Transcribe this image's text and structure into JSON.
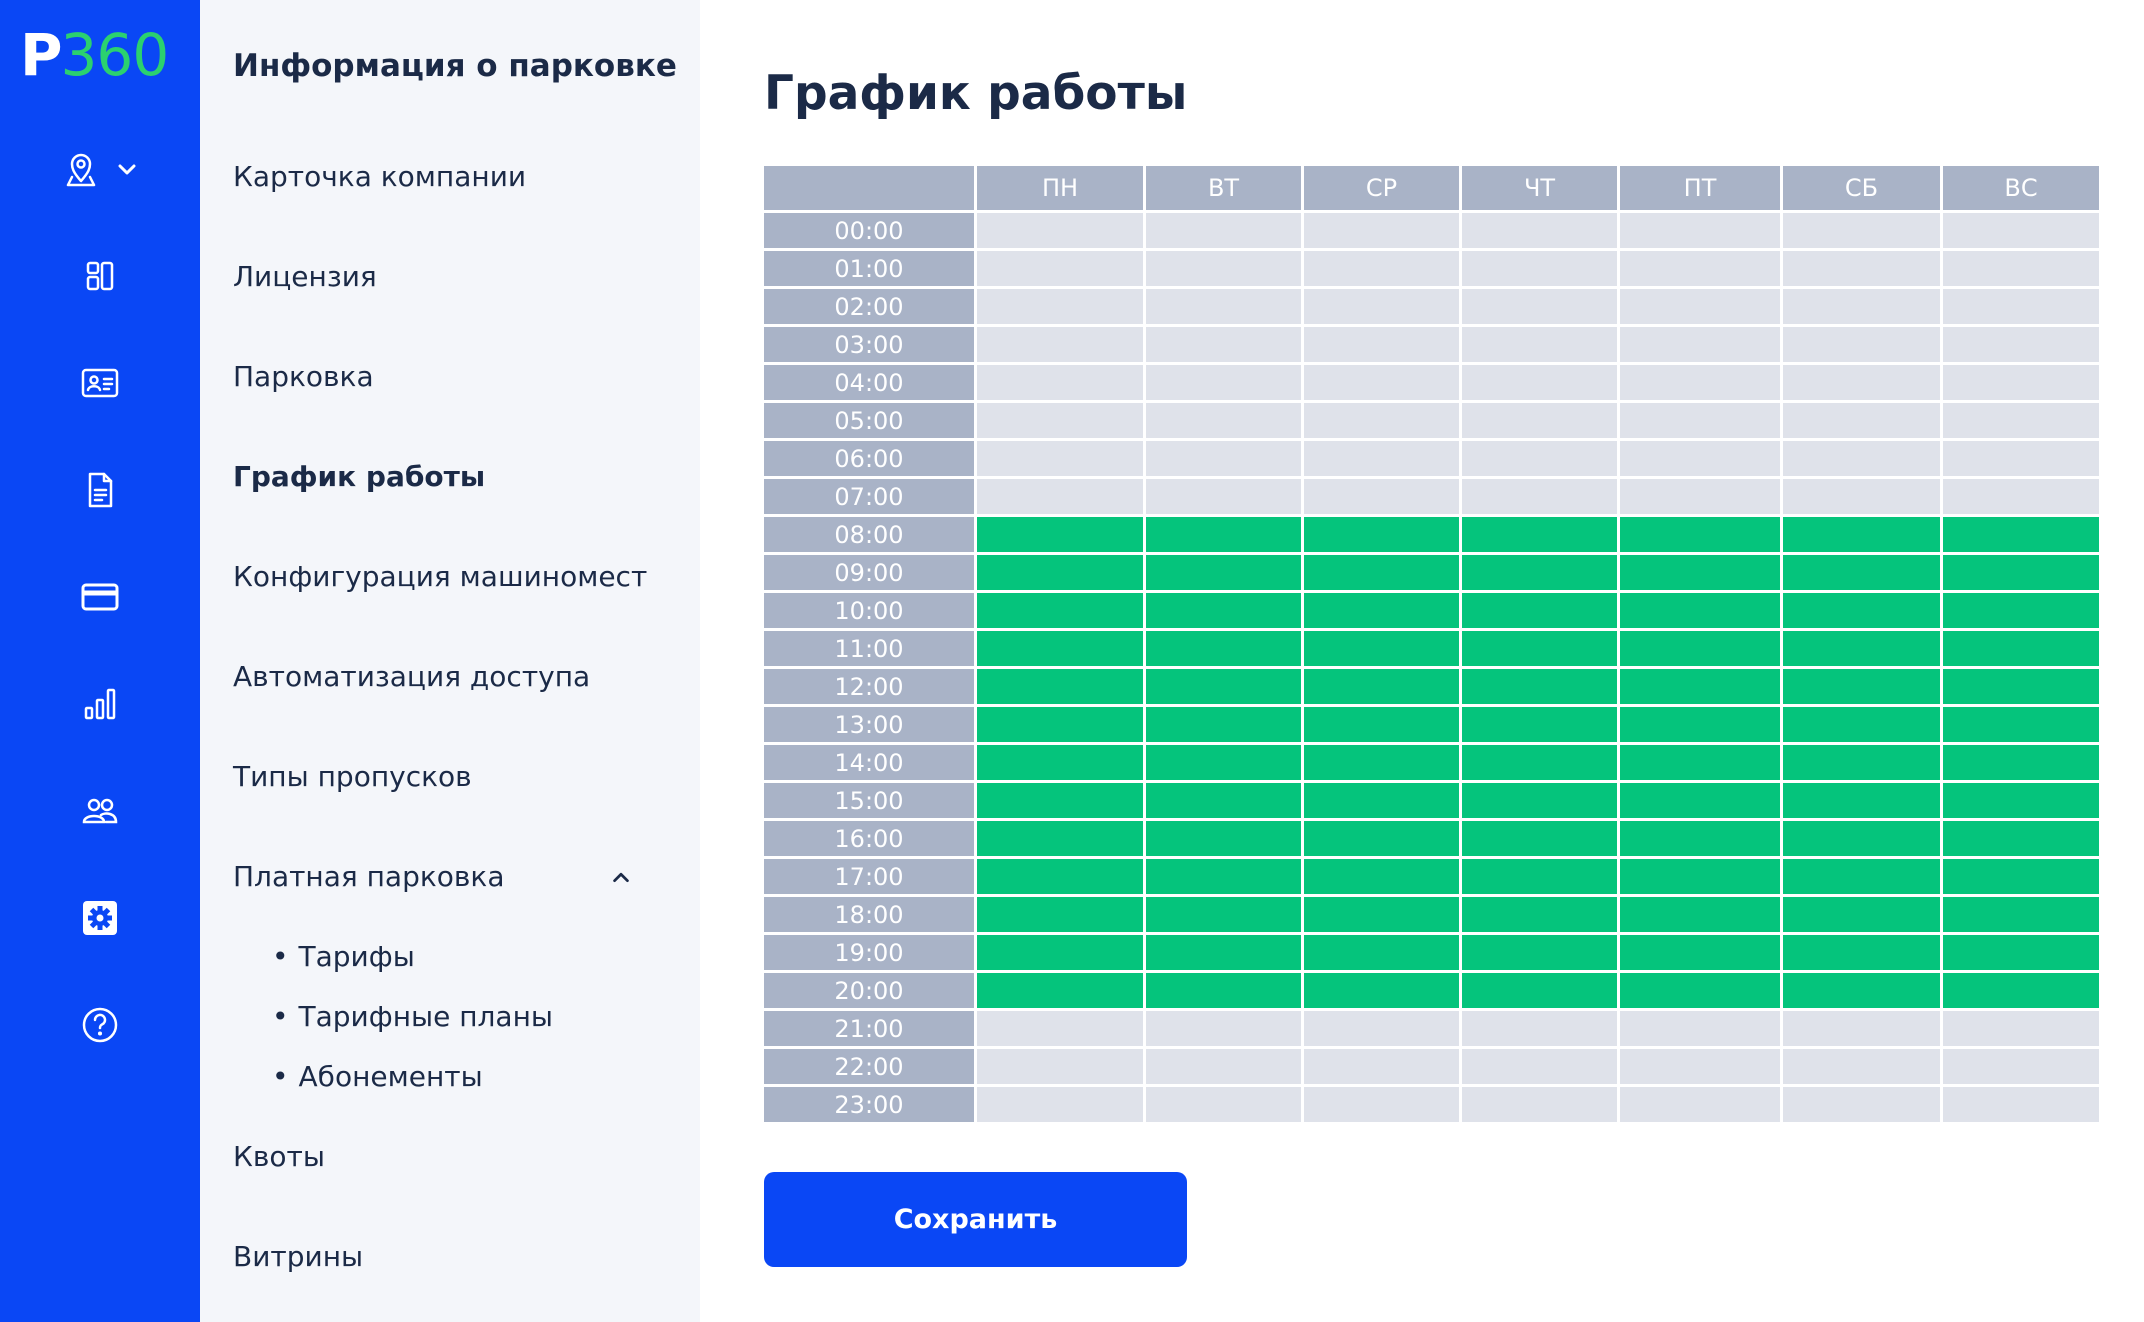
{
  "logo": {
    "letter": "P",
    "number": "360"
  },
  "rail": {
    "icons": [
      "location-pin-icon",
      "dashboard-icon",
      "id-card-icon",
      "document-icon",
      "credit-card-icon",
      "bar-chart-icon",
      "users-icon",
      "settings-icon",
      "help-icon"
    ],
    "active": "settings-icon"
  },
  "sidebar": {
    "title": "Информация о парковке",
    "items": [
      {
        "label": "Карточка компании"
      },
      {
        "label": "Лицензия"
      },
      {
        "label": "Парковка"
      },
      {
        "label": "График работы",
        "active": true
      },
      {
        "label": "Конфигурация машиномест"
      },
      {
        "label": "Автоматизация доступа"
      },
      {
        "label": "Типы пропусков"
      },
      {
        "label": "Платная парковка",
        "expanded": true
      },
      {
        "label": "Квоты"
      },
      {
        "label": "Витрины"
      }
    ],
    "paid_parking_sub": [
      {
        "label": "Тарифы"
      },
      {
        "label": "Тарифные планы"
      },
      {
        "label": "Абонементы"
      }
    ],
    "bullet": "•"
  },
  "main": {
    "title": "График работы",
    "days": [
      "ПН",
      "ВТ",
      "СР",
      "ЧТ",
      "ПТ",
      "СБ",
      "ВС"
    ],
    "hours": [
      "00:00",
      "01:00",
      "02:00",
      "03:00",
      "04:00",
      "05:00",
      "06:00",
      "07:00",
      "08:00",
      "09:00",
      "10:00",
      "11:00",
      "12:00",
      "13:00",
      "14:00",
      "15:00",
      "16:00",
      "17:00",
      "18:00",
      "19:00",
      "20:00",
      "21:00",
      "22:00",
      "23:00"
    ],
    "active_hours": [
      "08:00",
      "09:00",
      "10:00",
      "11:00",
      "12:00",
      "13:00",
      "14:00",
      "15:00",
      "16:00",
      "17:00",
      "18:00",
      "19:00",
      "20:00"
    ],
    "save_label": "Сохранить"
  },
  "colors": {
    "brand_blue": "#0a47f5",
    "logo_green": "#2bd16f",
    "active_cell": "#05c47c",
    "inactive_cell": "#dfe2ea",
    "header_cell": "#a9b3c7",
    "sidebar_bg": "#f4f6fa",
    "text": "#1b2a47"
  }
}
